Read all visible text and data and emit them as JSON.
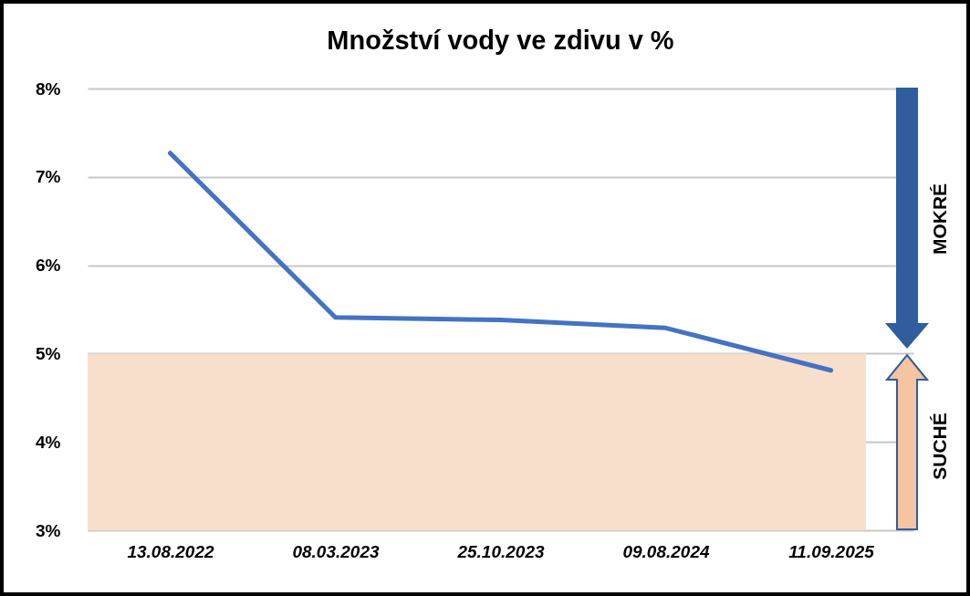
{
  "chart_data": {
    "type": "line",
    "title": "Množství vody ve zdivu v %",
    "categories": [
      "13.08.2022",
      "08.03.2023",
      "25.10.2023",
      "09.08.2024",
      "11.09.2025"
    ],
    "series": [
      {
        "color": "#4472c4",
        "values": [
          7.27,
          5.41,
          5.38,
          5.29,
          4.81
        ]
      }
    ],
    "ylim": [
      3,
      8
    ],
    "yticks": [
      {
        "value": 3,
        "label": "3%"
      },
      {
        "value": 4,
        "label": "4%"
      },
      {
        "value": 5,
        "label": "5%"
      },
      {
        "value": 6,
        "label": "6%"
      },
      {
        "value": 7,
        "label": "7%"
      },
      {
        "value": 8,
        "label": "8%"
      }
    ],
    "bands": [
      {
        "axis": "y",
        "from": 3,
        "to": 5,
        "color": "#f8dfcc"
      }
    ],
    "annotations": [
      "MOKRÉ",
      "SUCHÉ"
    ],
    "grid": "y",
    "marker": "none",
    "line_style": "solid"
  }
}
